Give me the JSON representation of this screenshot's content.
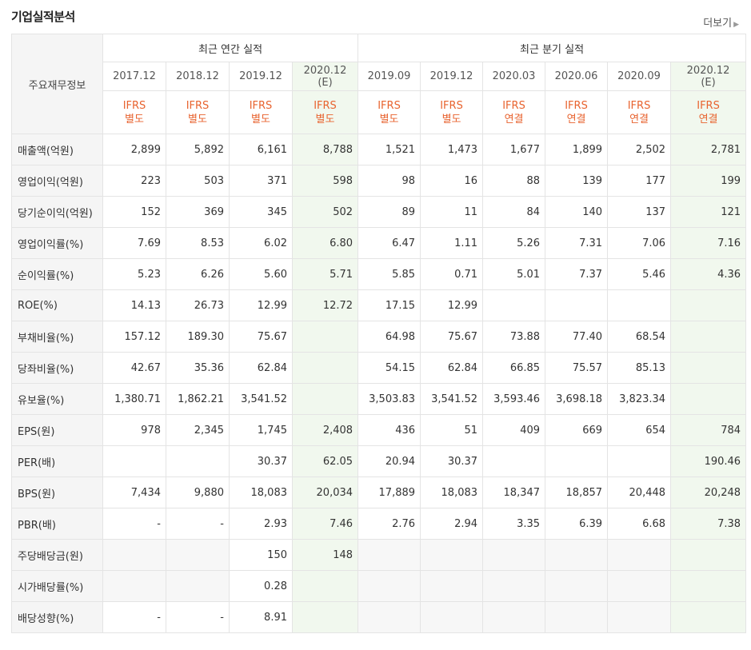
{
  "title": "기업실적분석",
  "more_label": "더보기",
  "header": {
    "row_label": "주요재무정보",
    "annual_group": "최근 연간 실적",
    "quarter_group": "최근 분기 실적",
    "annual": [
      {
        "date": "2017.12",
        "est": "",
        "ifrs": "IFRS",
        "type": "별도"
      },
      {
        "date": "2018.12",
        "est": "",
        "ifrs": "IFRS",
        "type": "별도"
      },
      {
        "date": "2019.12",
        "est": "",
        "ifrs": "IFRS",
        "type": "별도"
      },
      {
        "date": "2020.12",
        "est": "(E)",
        "ifrs": "IFRS",
        "type": "별도"
      }
    ],
    "quarter": [
      {
        "date": "2019.09",
        "est": "",
        "ifrs": "IFRS",
        "type": "별도"
      },
      {
        "date": "2019.12",
        "est": "",
        "ifrs": "IFRS",
        "type": "별도"
      },
      {
        "date": "2020.03",
        "est": "",
        "ifrs": "IFRS",
        "type": "연결"
      },
      {
        "date": "2020.06",
        "est": "",
        "ifrs": "IFRS",
        "type": "연결"
      },
      {
        "date": "2020.09",
        "est": "",
        "ifrs": "IFRS",
        "type": "연결"
      },
      {
        "date": "2020.12",
        "est": "(E)",
        "ifrs": "IFRS",
        "type": "연결"
      }
    ]
  },
  "rows": [
    {
      "label": "매출액(억원)",
      "values": [
        "2,899",
        "5,892",
        "6,161",
        "8,788",
        "1,521",
        "1,473",
        "1,677",
        "1,899",
        "2,502",
        "2,781"
      ]
    },
    {
      "label": "영업이익(억원)",
      "values": [
        "223",
        "503",
        "371",
        "598",
        "98",
        "16",
        "88",
        "139",
        "177",
        "199"
      ]
    },
    {
      "label": "당기순이익(억원)",
      "values": [
        "152",
        "369",
        "345",
        "502",
        "89",
        "11",
        "84",
        "140",
        "137",
        "121"
      ]
    },
    {
      "label": "영업이익률(%)",
      "values": [
        "7.69",
        "8.53",
        "6.02",
        "6.80",
        "6.47",
        "1.11",
        "5.26",
        "7.31",
        "7.06",
        "7.16"
      ]
    },
    {
      "label": "순이익률(%)",
      "values": [
        "5.23",
        "6.26",
        "5.60",
        "5.71",
        "5.85",
        "0.71",
        "5.01",
        "7.37",
        "5.46",
        "4.36"
      ]
    },
    {
      "label": "ROE(%)",
      "values": [
        "14.13",
        "26.73",
        "12.99",
        "12.72",
        "17.15",
        "12.99",
        "",
        "",
        "",
        ""
      ]
    },
    {
      "label": "부채비율(%)",
      "values": [
        "157.12",
        "189.30",
        "75.67",
        "",
        "64.98",
        "75.67",
        "73.88",
        "77.40",
        "68.54",
        ""
      ]
    },
    {
      "label": "당좌비율(%)",
      "values": [
        "42.67",
        "35.36",
        "62.84",
        "",
        "54.15",
        "62.84",
        "66.85",
        "75.57",
        "85.13",
        ""
      ]
    },
    {
      "label": "유보율(%)",
      "values": [
        "1,380.71",
        "1,862.21",
        "3,541.52",
        "",
        "3,503.83",
        "3,541.52",
        "3,593.46",
        "3,698.18",
        "3,823.34",
        ""
      ]
    },
    {
      "label": "EPS(원)",
      "values": [
        "978",
        "2,345",
        "1,745",
        "2,408",
        "436",
        "51",
        "409",
        "669",
        "654",
        "784"
      ]
    },
    {
      "label": "PER(배)",
      "values": [
        "",
        "",
        "30.37",
        "62.05",
        "20.94",
        "30.37",
        "",
        "",
        "",
        "190.46"
      ]
    },
    {
      "label": "BPS(원)",
      "values": [
        "7,434",
        "9,880",
        "18,083",
        "20,034",
        "17,889",
        "18,083",
        "18,347",
        "18,857",
        "20,448",
        "20,248"
      ]
    },
    {
      "label": "PBR(배)",
      "values": [
        "-",
        "-",
        "2.93",
        "7.46",
        "2.76",
        "2.94",
        "3.35",
        "6.39",
        "6.68",
        "7.38"
      ]
    },
    {
      "label": "주당배당금(원)",
      "values": [
        "",
        "",
        "150",
        "148",
        "",
        "",
        "",
        "",
        "",
        ""
      ]
    },
    {
      "label": "시가배당률(%)",
      "values": [
        "",
        "",
        "0.28",
        "",
        "",
        "",
        "",
        "",
        "",
        ""
      ]
    },
    {
      "label": "배당성향(%)",
      "values": [
        "-",
        "-",
        "8.91",
        "",
        "",
        "",
        "",
        "",
        "",
        ""
      ]
    }
  ],
  "colors": {
    "ifrs": "#e8632f",
    "estimate_bg": "#f1f8ee",
    "label_bg": "#f5f5f5"
  }
}
